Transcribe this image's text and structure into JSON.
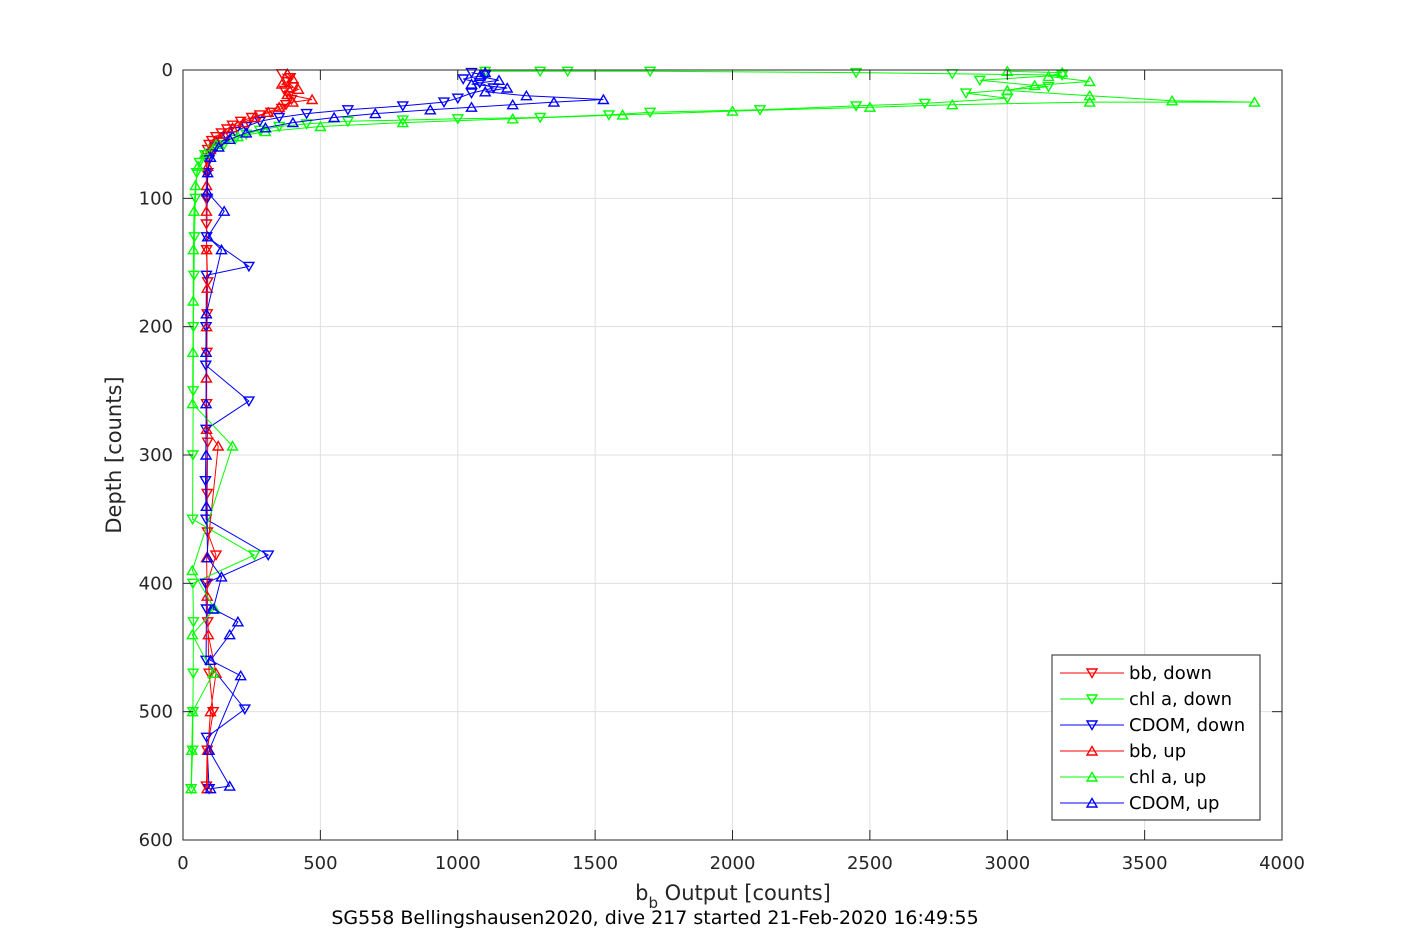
{
  "chart_data": {
    "type": "line",
    "title": "SG558 Bellingshausen2020, dive 217 started 21-Feb-2020 16:49:55",
    "xlabel_main": "b",
    "xlabel_sub": "b",
    "xlabel_rest": " Output [counts]",
    "ylabel": "Depth [counts]",
    "xlim": [
      0,
      4000
    ],
    "ylim": [
      0,
      600
    ],
    "y_reversed": true,
    "grid": true,
    "xticks": [
      0,
      500,
      1000,
      1500,
      2000,
      2500,
      3000,
      3500,
      4000
    ],
    "yticks": [
      0,
      100,
      200,
      300,
      400,
      500,
      600
    ],
    "xtick_labels": [
      "0",
      "500",
      "1000",
      "1500",
      "2000",
      "2500",
      "3000",
      "3500",
      "4000"
    ],
    "ytick_labels": [
      "0",
      "100",
      "200",
      "300",
      "400",
      "500",
      "600"
    ],
    "legend_position": "bottom-right",
    "series": [
      {
        "name": "bb, down",
        "color": "#ff0000",
        "marker": "triangle-down",
        "points": [
          [
            360,
            3
          ],
          [
            390,
            6
          ],
          [
            380,
            9
          ],
          [
            400,
            13
          ],
          [
            370,
            16
          ],
          [
            385,
            20
          ],
          [
            395,
            23
          ],
          [
            375,
            27
          ],
          [
            360,
            30
          ],
          [
            320,
            33
          ],
          [
            280,
            35
          ],
          [
            250,
            37
          ],
          [
            210,
            40
          ],
          [
            180,
            43
          ],
          [
            160,
            46
          ],
          [
            140,
            49
          ],
          [
            120,
            52
          ],
          [
            105,
            55
          ],
          [
            95,
            58
          ],
          [
            90,
            62
          ],
          [
            88,
            66
          ],
          [
            86,
            70
          ],
          [
            85,
            80
          ],
          [
            84,
            100
          ],
          [
            85,
            120
          ],
          [
            86,
            140
          ],
          [
            90,
            165
          ],
          [
            88,
            190
          ],
          [
            87,
            220
          ],
          [
            86,
            260
          ],
          [
            90,
            290
          ],
          [
            88,
            330
          ],
          [
            89,
            360
          ],
          [
            120,
            378
          ],
          [
            88,
            400
          ],
          [
            90,
            430
          ],
          [
            95,
            470
          ],
          [
            110,
            500
          ],
          [
            88,
            530
          ],
          [
            85,
            558
          ]
        ]
      },
      {
        "name": "chl a, down",
        "color": "#00ff00",
        "marker": "triangle-down",
        "points": [
          [
            1100,
            1
          ],
          [
            1300,
            1
          ],
          [
            1400,
            1
          ],
          [
            1700,
            1
          ],
          [
            2450,
            2
          ],
          [
            2800,
            3
          ],
          [
            3200,
            4
          ],
          [
            2900,
            8
          ],
          [
            3150,
            13
          ],
          [
            2850,
            18
          ],
          [
            3000,
            22
          ],
          [
            2700,
            26
          ],
          [
            2450,
            28
          ],
          [
            2100,
            31
          ],
          [
            1700,
            33
          ],
          [
            1550,
            35
          ],
          [
            1300,
            37
          ],
          [
            1000,
            38
          ],
          [
            800,
            39
          ],
          [
            600,
            40
          ],
          [
            450,
            42
          ],
          [
            350,
            44
          ],
          [
            280,
            47
          ],
          [
            230,
            50
          ],
          [
            190,
            54
          ],
          [
            150,
            58
          ],
          [
            110,
            62
          ],
          [
            80,
            66
          ],
          [
            60,
            72
          ],
          [
            50,
            80
          ],
          [
            45,
            100
          ],
          [
            42,
            130
          ],
          [
            40,
            160
          ],
          [
            38,
            200
          ],
          [
            37,
            250
          ],
          [
            36,
            300
          ],
          [
            35,
            350
          ],
          [
            260,
            378
          ],
          [
            36,
            400
          ],
          [
            38,
            430
          ],
          [
            37,
            470
          ],
          [
            36,
            500
          ],
          [
            35,
            530
          ],
          [
            30,
            560
          ]
        ]
      },
      {
        "name": "CDOM, down",
        "color": "#0000ff",
        "marker": "triangle-down",
        "points": [
          [
            1050,
            2
          ],
          [
            1100,
            4
          ],
          [
            1020,
            7
          ],
          [
            1080,
            10
          ],
          [
            1130,
            14
          ],
          [
            1050,
            18
          ],
          [
            1000,
            22
          ],
          [
            950,
            25
          ],
          [
            800,
            28
          ],
          [
            600,
            31
          ],
          [
            450,
            34
          ],
          [
            350,
            37
          ],
          [
            280,
            40
          ],
          [
            230,
            44
          ],
          [
            190,
            48
          ],
          [
            160,
            52
          ],
          [
            140,
            56
          ],
          [
            120,
            60
          ],
          [
            105,
            65
          ],
          [
            95,
            70
          ],
          [
            90,
            80
          ],
          [
            88,
            100
          ],
          [
            86,
            130
          ],
          [
            240,
            153
          ],
          [
            85,
            160
          ],
          [
            84,
            200
          ],
          [
            83,
            230
          ],
          [
            240,
            258
          ],
          [
            84,
            280
          ],
          [
            82,
            320
          ],
          [
            84,
            350
          ],
          [
            310,
            378
          ],
          [
            82,
            400
          ],
          [
            85,
            420
          ],
          [
            84,
            460
          ],
          [
            225,
            498
          ],
          [
            86,
            520
          ],
          [
            95,
            560
          ]
        ]
      },
      {
        "name": "bb, up",
        "color": "#ff0000",
        "marker": "triangle-up",
        "points": [
          [
            88,
            560
          ],
          [
            90,
            530
          ],
          [
            100,
            500
          ],
          [
            120,
            470
          ],
          [
            92,
            440
          ],
          [
            88,
            410
          ],
          [
            86,
            380
          ],
          [
            128,
            293
          ],
          [
            86,
            280
          ],
          [
            85,
            240
          ],
          [
            86,
            200
          ],
          [
            88,
            170
          ],
          [
            86,
            140
          ],
          [
            85,
            110
          ],
          [
            86,
            90
          ],
          [
            90,
            75
          ],
          [
            100,
            62
          ],
          [
            120,
            55
          ],
          [
            150,
            50
          ],
          [
            180,
            45
          ],
          [
            220,
            41
          ],
          [
            260,
            37
          ],
          [
            310,
            33
          ],
          [
            350,
            29
          ],
          [
            400,
            25
          ],
          [
            470,
            23
          ],
          [
            380,
            19
          ],
          [
            420,
            15
          ],
          [
            360,
            11
          ],
          [
            400,
            7
          ],
          [
            380,
            3
          ]
        ]
      },
      {
        "name": "chl a, up",
        "color": "#00ff00",
        "marker": "triangle-up",
        "points": [
          [
            30,
            560
          ],
          [
            32,
            530
          ],
          [
            35,
            500
          ],
          [
            110,
            470
          ],
          [
            34,
            440
          ],
          [
            115,
            420
          ],
          [
            34,
            390
          ],
          [
            180,
            293
          ],
          [
            35,
            260
          ],
          [
            36,
            220
          ],
          [
            37,
            180
          ],
          [
            38,
            140
          ],
          [
            40,
            110
          ],
          [
            45,
            90
          ],
          [
            55,
            75
          ],
          [
            80,
            65
          ],
          [
            120,
            58
          ],
          [
            200,
            52
          ],
          [
            300,
            48
          ],
          [
            500,
            44
          ],
          [
            800,
            41
          ],
          [
            1200,
            38
          ],
          [
            1600,
            35
          ],
          [
            2000,
            32
          ],
          [
            2500,
            29
          ],
          [
            2800,
            27
          ],
          [
            3300,
            25
          ],
          [
            3900,
            25
          ],
          [
            3600,
            24
          ],
          [
            3300,
            20
          ],
          [
            3000,
            16
          ],
          [
            3100,
            12
          ],
          [
            3300,
            9
          ],
          [
            3150,
            5
          ],
          [
            3200,
            2
          ],
          [
            3000,
            1
          ]
        ]
      },
      {
        "name": "CDOM, up",
        "color": "#0000ff",
        "marker": "triangle-up",
        "points": [
          [
            100,
            560
          ],
          [
            170,
            558
          ],
          [
            95,
            530
          ],
          [
            210,
            472
          ],
          [
            100,
            460
          ],
          [
            170,
            440
          ],
          [
            200,
            430
          ],
          [
            110,
            420
          ],
          [
            140,
            395
          ],
          [
            90,
            380
          ],
          [
            85,
            340
          ],
          [
            84,
            300
          ],
          [
            84,
            260
          ],
          [
            84,
            220
          ],
          [
            85,
            190
          ],
          [
            140,
            140
          ],
          [
            90,
            130
          ],
          [
            150,
            110
          ],
          [
            88,
            95
          ],
          [
            90,
            80
          ],
          [
            100,
            68
          ],
          [
            130,
            60
          ],
          [
            170,
            54
          ],
          [
            230,
            49
          ],
          [
            300,
            45
          ],
          [
            400,
            41
          ],
          [
            550,
            37
          ],
          [
            700,
            34
          ],
          [
            900,
            31
          ],
          [
            1050,
            29
          ],
          [
            1200,
            27
          ],
          [
            1350,
            25
          ],
          [
            1530,
            23
          ],
          [
            1250,
            20
          ],
          [
            1100,
            17
          ],
          [
            1180,
            14
          ],
          [
            1050,
            11
          ],
          [
            1150,
            8
          ],
          [
            1080,
            5
          ],
          [
            1100,
            2
          ]
        ]
      }
    ]
  }
}
